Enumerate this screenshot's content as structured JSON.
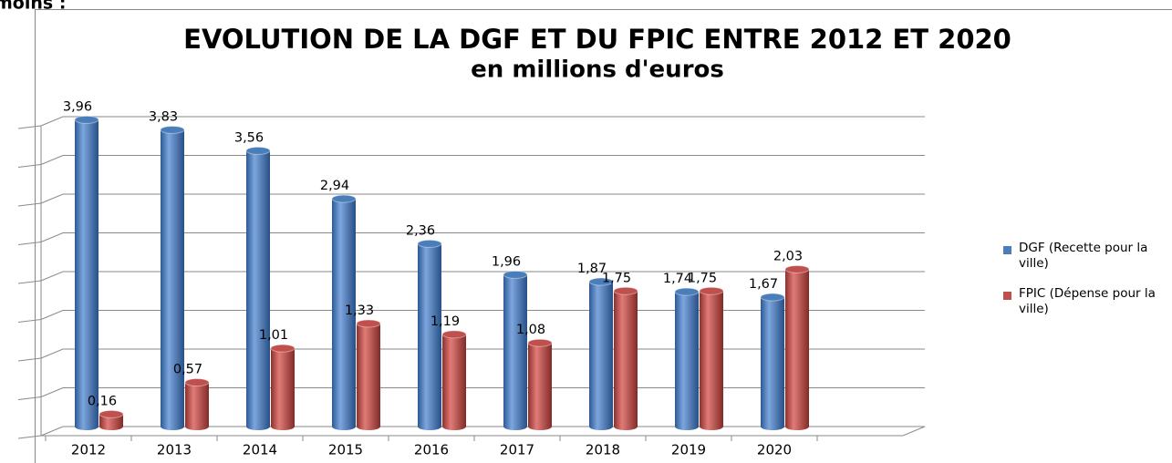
{
  "page_text": "moins :",
  "chart_data": {
    "type": "bar3d",
    "title": "EVOLUTION DE LA DGF ET DU FPIC ENTRE 2012 ET 2020",
    "subtitle": "en millions d'euros",
    "categories": [
      "2012",
      "2013",
      "2014",
      "2015",
      "2016",
      "2017",
      "2018",
      "2019",
      "2020",
      null
    ],
    "series": [
      {
        "name": "DGF (Recette pour la ville)",
        "color": "#4a7ebb",
        "values": [
          3.96,
          3.83,
          3.56,
          2.94,
          2.36,
          1.96,
          1.87,
          1.74,
          1.67,
          null
        ],
        "value_labels": [
          "3,96",
          "3,83",
          "3,56",
          "2,94",
          "2,36",
          "1,96",
          "1,87",
          "1,74",
          "1,67",
          null
        ]
      },
      {
        "name": "FPIC (Dépense pour la ville)",
        "color": "#c0504d",
        "values": [
          0.16,
          0.57,
          1.01,
          1.33,
          1.19,
          1.08,
          1.75,
          1.75,
          2.03,
          null
        ],
        "value_labels": [
          "0,16",
          "0,57",
          "1,01",
          "1,33",
          "1,19",
          "1,08",
          "1,75",
          "1,75",
          "2,03",
          null
        ]
      }
    ],
    "ylim": [
      0,
      4
    ],
    "yticks": [
      0,
      0.5,
      1,
      1.5,
      2,
      2.5,
      3,
      3.5,
      4
    ],
    "grid": true,
    "legend": "right"
  }
}
